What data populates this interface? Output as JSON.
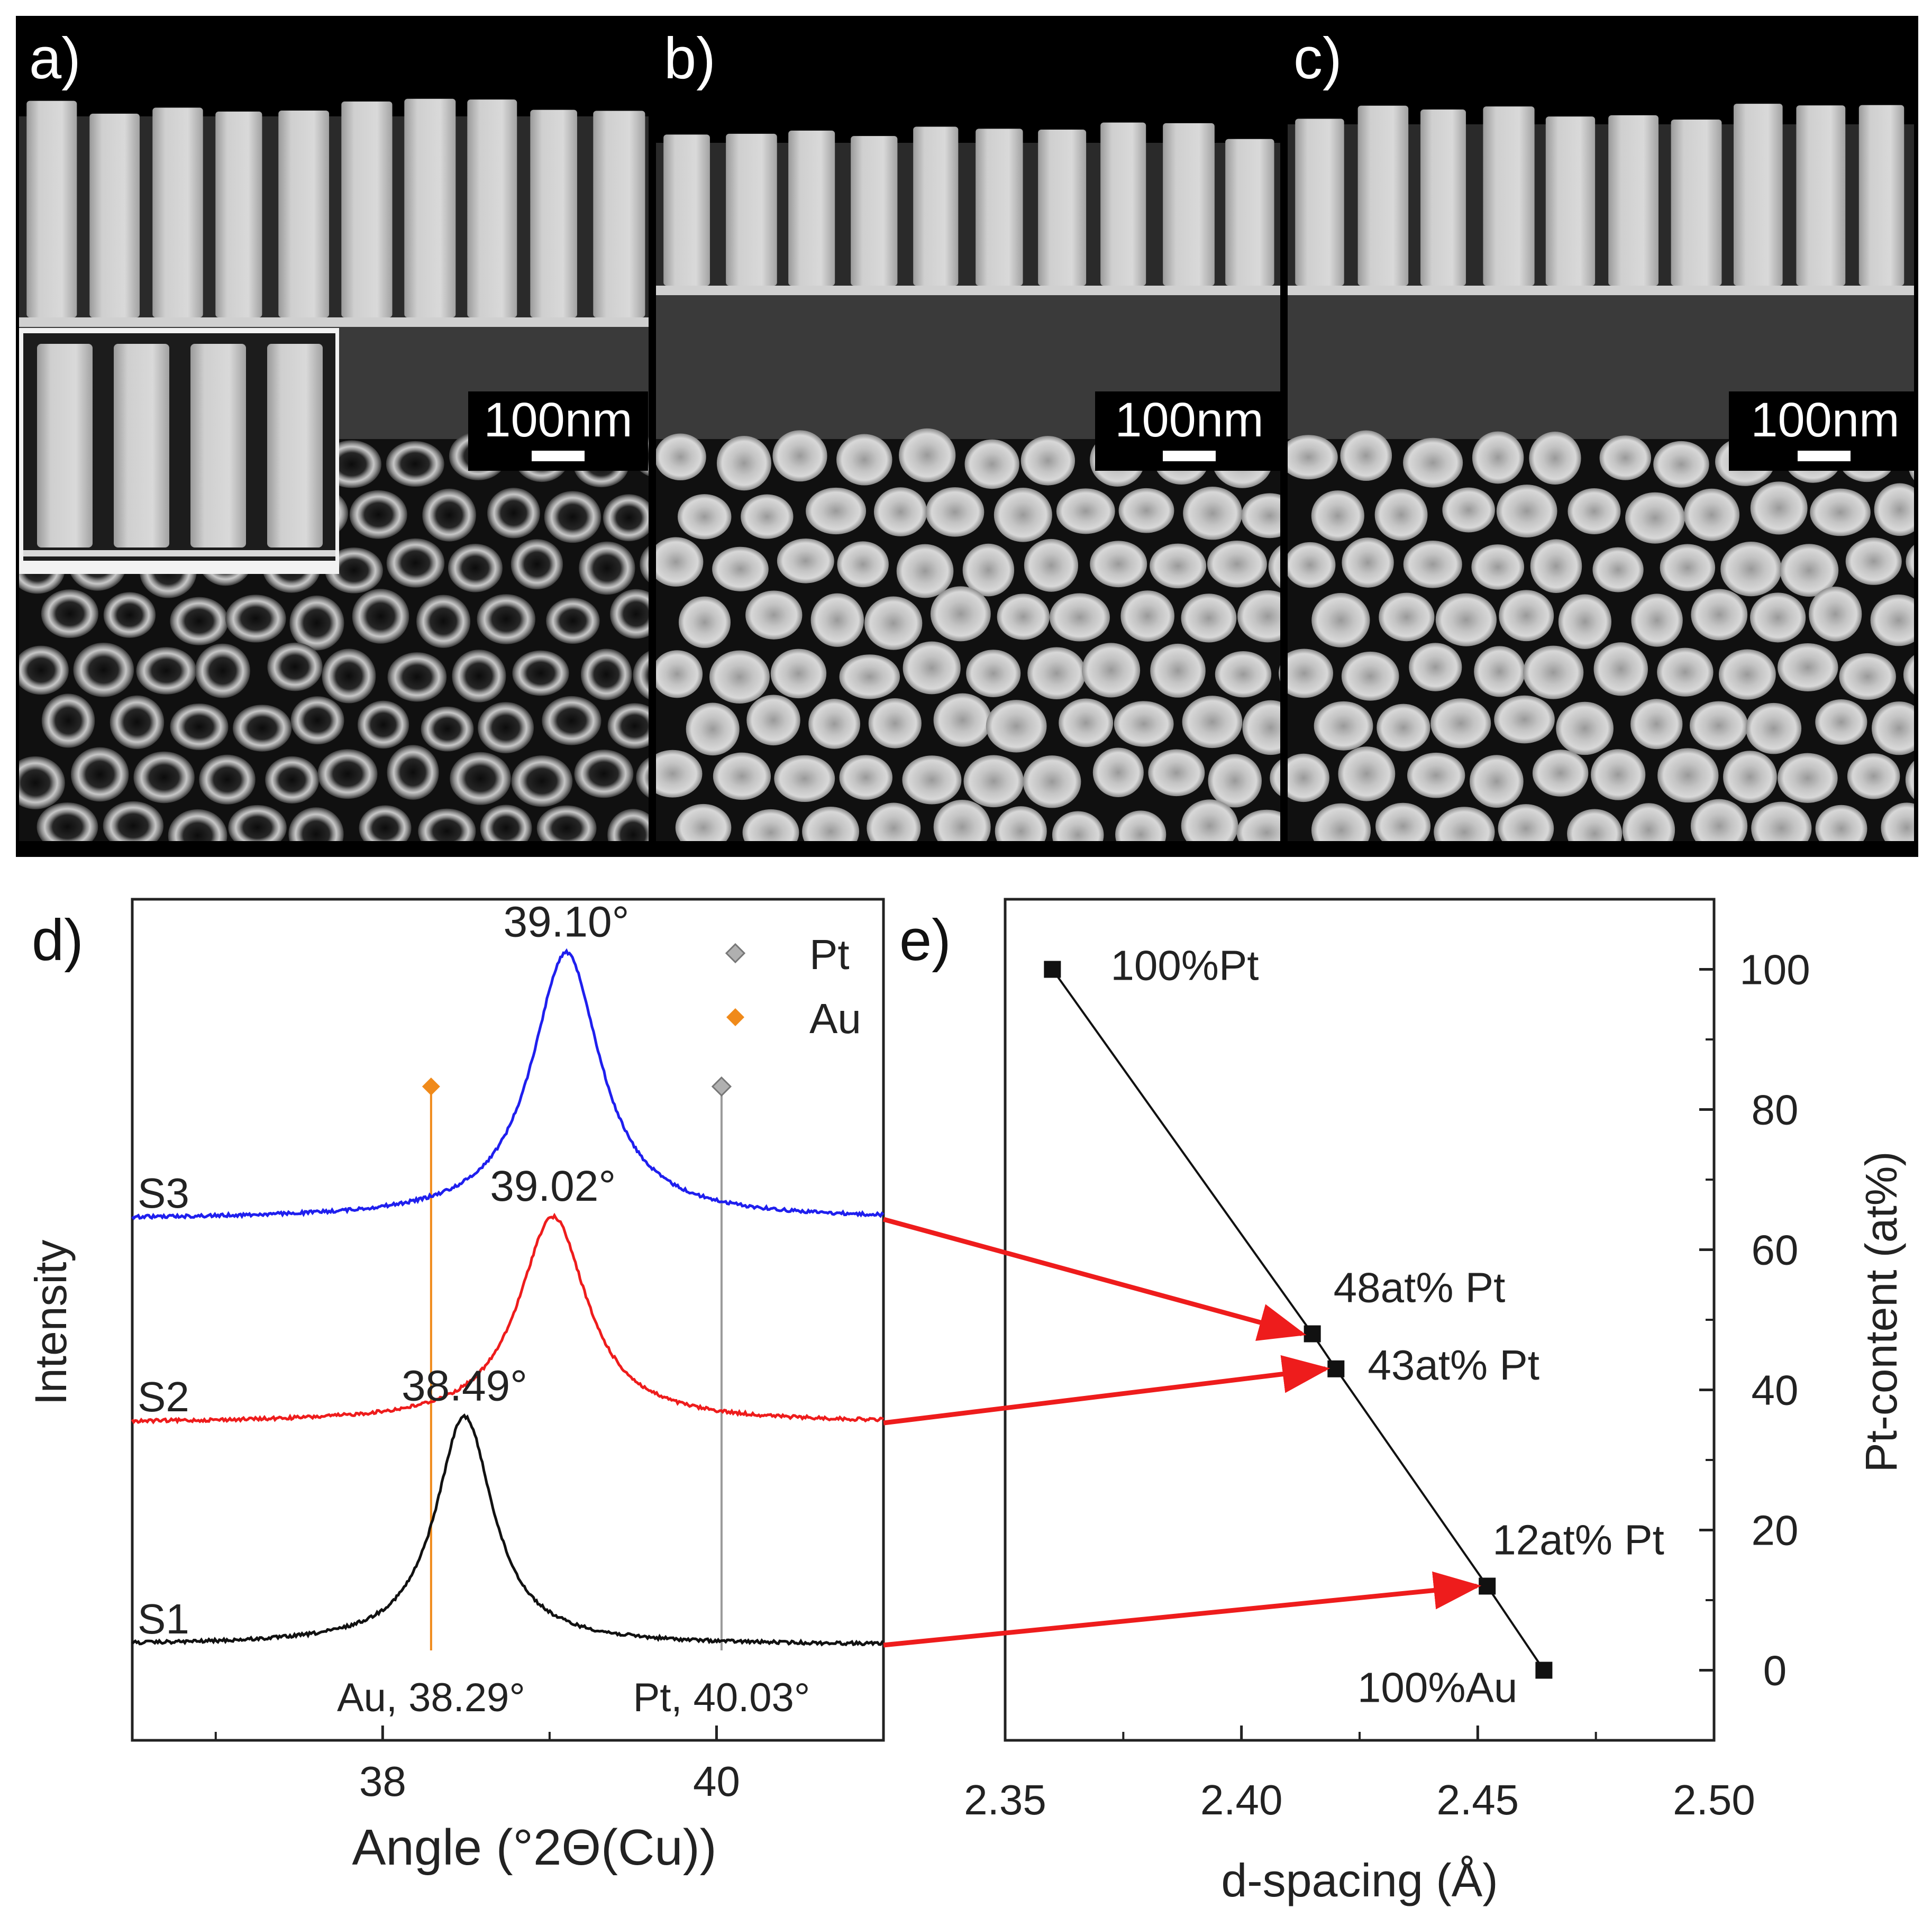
{
  "panels": {
    "a": {
      "label": "a)",
      "scale_bar": "100nm"
    },
    "b": {
      "label": "b)",
      "scale_bar": "100nm"
    },
    "c": {
      "label": "c)",
      "scale_bar": "100nm"
    },
    "d": {
      "label": "d)"
    },
    "e": {
      "label": "e)"
    }
  },
  "colors": {
    "S1": "#111111",
    "S2": "#ee1c1c",
    "S3": "#1f1fee",
    "Au": "#f08a1a",
    "Pt": "#9a9a9a",
    "arrow": "#ee1c1c"
  },
  "chart_data": [
    {
      "type": "line",
      "panel": "d",
      "xlabel": "Angle (°2Θ(Cu))",
      "ylabel": "Intensity",
      "xlim": [
        36.5,
        41.0
      ],
      "x_ticks": [
        38,
        40
      ],
      "x_tick_labels": [
        "38",
        "40"
      ],
      "legend": {
        "placement": "top-right",
        "entries": [
          {
            "name": "Pt",
            "marker": "diamond"
          },
          {
            "name": "Au",
            "marker": "diamond"
          }
        ]
      },
      "series": [
        {
          "name": "S1",
          "peak_x": 38.49,
          "peak_label": "38.49°",
          "peak_height": 0.92,
          "width": 0.42
        },
        {
          "name": "S2",
          "peak_x": 39.02,
          "peak_label": "39.02°",
          "peak_height": 0.78,
          "width": 0.5
        },
        {
          "name": "S3",
          "peak_x": 39.1,
          "peak_label": "39.10°",
          "peak_height": 0.97,
          "width": 0.5
        }
      ],
      "reference_lines": [
        {
          "name": "Au",
          "x": 38.29,
          "label": "Au, 38.29°"
        },
        {
          "name": "Pt",
          "x": 40.03,
          "label": "Pt, 40.03°"
        }
      ]
    },
    {
      "type": "line",
      "panel": "e",
      "xlabel": "d-spacing (Å)",
      "ylabel": "Pt-content (at%)",
      "xlim": [
        2.35,
        2.5
      ],
      "ylim": [
        -10,
        110
      ],
      "x_ticks": [
        2.35,
        2.4,
        2.45,
        2.5
      ],
      "x_tick_labels": [
        "2.35",
        "2.40",
        "2.45",
        "2.50"
      ],
      "y_ticks": [
        0,
        20,
        40,
        60,
        80,
        100
      ],
      "y_tick_labels": [
        "0",
        "20",
        "40",
        "60",
        "80",
        "100"
      ],
      "y_axis_side": "right",
      "points": [
        {
          "x": 2.36,
          "y": 100,
          "label": "100%Pt"
        },
        {
          "x": 2.415,
          "y": 48,
          "label": "48at% Pt"
        },
        {
          "x": 2.42,
          "y": 43,
          "label": "43at% Pt"
        },
        {
          "x": 2.452,
          "y": 12,
          "label": "12at% Pt"
        },
        {
          "x": 2.464,
          "y": 0,
          "label": "100%Au"
        }
      ],
      "arrows": [
        {
          "from_series": "S3",
          "to_point": "48at% Pt"
        },
        {
          "from_series": "S2",
          "to_point": "43at% Pt"
        },
        {
          "from_series": "S1",
          "to_point": "12at% Pt"
        }
      ]
    }
  ]
}
